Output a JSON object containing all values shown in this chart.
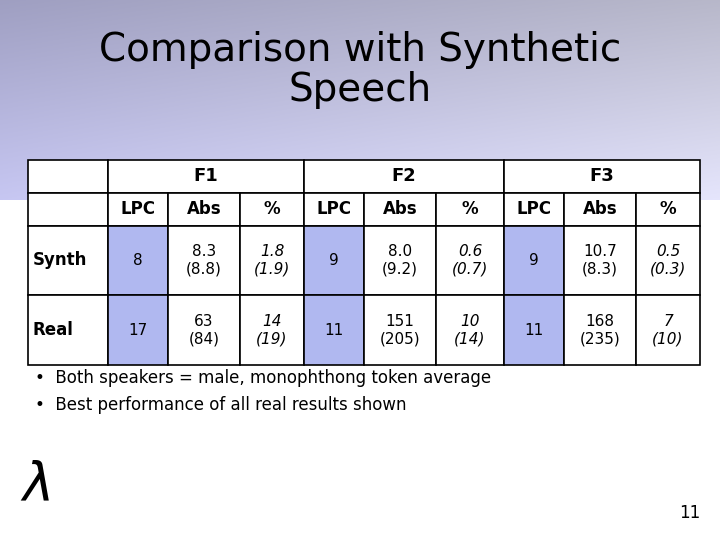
{
  "title_line1": "Comparison with Synthetic",
  "title_line2": "Speech",
  "background_color": "#ffffff",
  "gradient_color_left": "#c8c8f0",
  "gradient_color_right": "#e8e8f8",
  "table": {
    "col_headers_row1": [
      "",
      "F1",
      "F2",
      "F3"
    ],
    "col_headers_row2": [
      "",
      "LPC",
      "Abs",
      "%",
      "LPC",
      "Abs",
      "%",
      "LPC",
      "Abs",
      "%"
    ],
    "synth_vals": [
      "8",
      "8.3\n(8.8)",
      "1.8\n(1.9)",
      "9",
      "8.0\n(9.2)",
      "0.6\n(0.7)",
      "9",
      "10.7\n(8.3)",
      "0.5\n(0.3)"
    ],
    "synth_italic": [
      false,
      false,
      true,
      false,
      false,
      true,
      false,
      false,
      true
    ],
    "synth_highlight": [
      true,
      false,
      false,
      true,
      false,
      false,
      true,
      false,
      false
    ],
    "real_vals": [
      "17",
      "63\n(84)",
      "14\n(19)",
      "11",
      "151\n(205)",
      "10\n(14)",
      "11",
      "168\n(235)",
      "7\n(10)"
    ],
    "real_italic": [
      false,
      false,
      true,
      false,
      false,
      true,
      false,
      false,
      true
    ],
    "real_highlight": [
      true,
      false,
      false,
      true,
      false,
      false,
      true,
      false,
      false
    ]
  },
  "bullets": [
    "Both speakers = male, monophthong token average",
    "Best performance of all real results shown"
  ],
  "slide_number": "11",
  "cell_highlight_color": "#b0b8f0",
  "cell_normal_color": "#ffffff",
  "cell_border_color": "#000000",
  "title_color": "#000000",
  "text_color": "#000000",
  "lambda_symbol": "λ"
}
